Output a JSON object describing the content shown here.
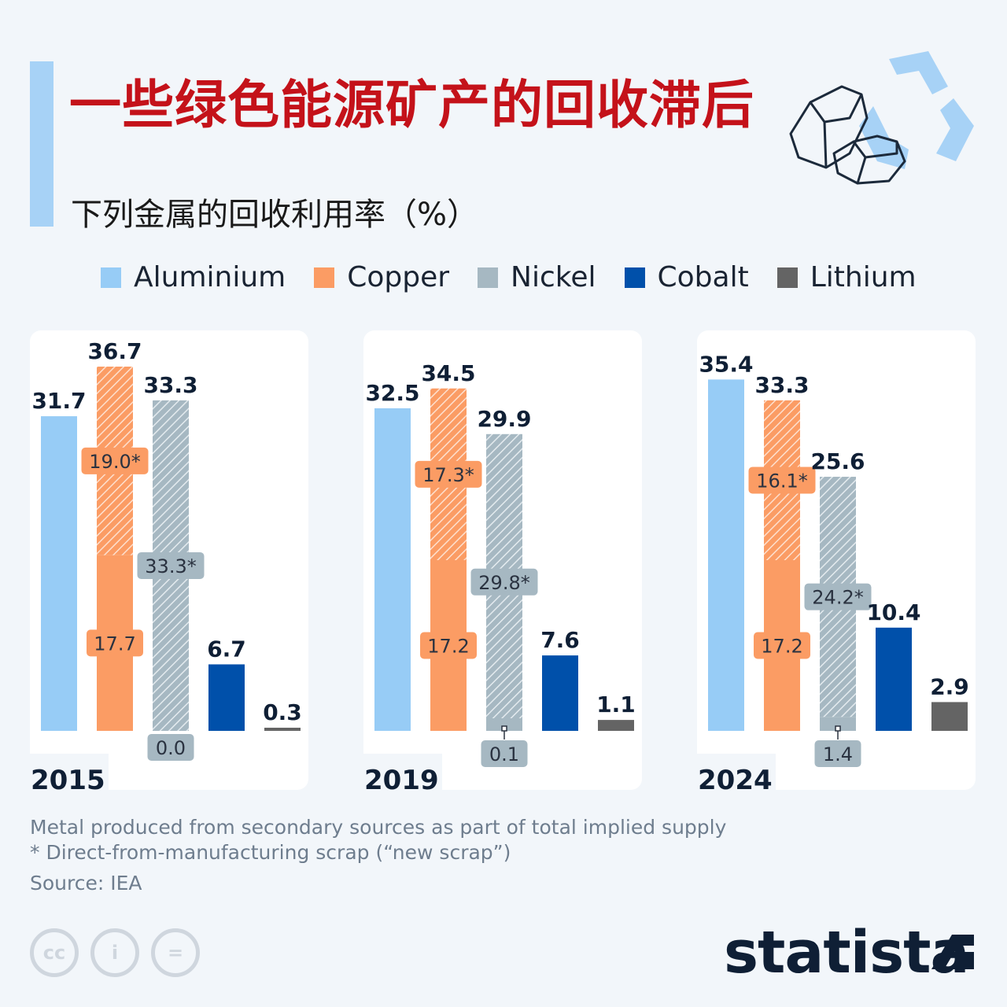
{
  "header": {
    "title": "一些绿色能源矿产的回收滞后",
    "subtitle": "下列金属的回收利用率（%）"
  },
  "legend": [
    {
      "name": "Aluminium",
      "color": "#97ccf6"
    },
    {
      "name": "Copper",
      "color": "#fb9c64"
    },
    {
      "name": "Nickel",
      "color": "#a6b8c2"
    },
    {
      "name": "Cobalt",
      "color": "#0050aa"
    },
    {
      "name": "Lithium",
      "color": "#646464"
    }
  ],
  "chart_data": {
    "type": "bar",
    "y_unit": "%",
    "ylim": [
      0,
      36.7
    ],
    "series_names": [
      "Aluminium",
      "Copper",
      "Nickel",
      "Cobalt",
      "Lithium"
    ],
    "hatched_meaning": "Direct-from-manufacturing scrap (“new scrap”)",
    "panels": [
      {
        "year": "2015",
        "bars": [
          {
            "series": "Aluminium",
            "total": 31.7,
            "total_label": "31.7"
          },
          {
            "series": "Copper",
            "total": 36.7,
            "total_label": "36.7",
            "base": 17.7,
            "base_label": "17.7",
            "new_scrap_label": "19.0*"
          },
          {
            "series": "Nickel",
            "total": 33.3,
            "total_label": "33.3",
            "base": 0.0,
            "base_label": "0.0",
            "new_scrap_label": "33.3*"
          },
          {
            "series": "Cobalt",
            "total": 6.7,
            "total_label": "6.7"
          },
          {
            "series": "Lithium",
            "total": 0.3,
            "total_label": "0.3"
          }
        ]
      },
      {
        "year": "2019",
        "bars": [
          {
            "series": "Aluminium",
            "total": 32.5,
            "total_label": "32.5"
          },
          {
            "series": "Copper",
            "total": 34.5,
            "total_label": "34.5",
            "base": 17.2,
            "base_label": "17.2",
            "new_scrap_label": "17.3*"
          },
          {
            "series": "Nickel",
            "total": 29.9,
            "total_label": "29.9",
            "base": 0.1,
            "base_label": "0.1",
            "new_scrap_label": "29.8*"
          },
          {
            "series": "Cobalt",
            "total": 7.6,
            "total_label": "7.6"
          },
          {
            "series": "Lithium",
            "total": 1.1,
            "total_label": "1.1"
          }
        ]
      },
      {
        "year": "2024",
        "bars": [
          {
            "series": "Aluminium",
            "total": 35.4,
            "total_label": "35.4"
          },
          {
            "series": "Copper",
            "total": 33.3,
            "total_label": "33.3",
            "base": 17.2,
            "base_label": "17.2",
            "new_scrap_label": "16.1*"
          },
          {
            "series": "Nickel",
            "total": 25.6,
            "total_label": "25.6",
            "base": 1.4,
            "base_label": "1.4",
            "new_scrap_label": "24.2*"
          },
          {
            "series": "Cobalt",
            "total": 10.4,
            "total_label": "10.4"
          },
          {
            "series": "Lithium",
            "total": 2.9,
            "total_label": "2.9"
          }
        ]
      }
    ]
  },
  "footer": {
    "note": "Metal produced from secondary sources as part of total implied supply",
    "footnote": "* Direct-from-manufacturing scrap (“new scrap”)",
    "source": "Source: IEA",
    "brand": "statista",
    "license_icons": [
      "cc-icon",
      "attribution-icon",
      "no-derivatives-icon"
    ],
    "license_glyphs": [
      "cc",
      "i",
      "="
    ]
  }
}
